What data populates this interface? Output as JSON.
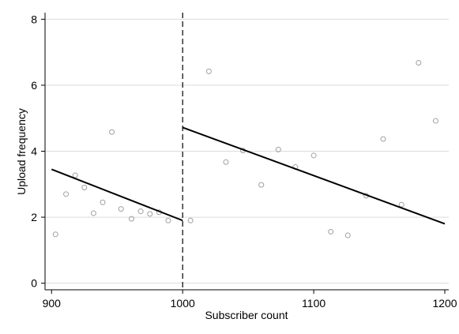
{
  "chart_data": {
    "type": "scatter",
    "xlabel": "Subscriber count",
    "ylabel": "Upload frequency",
    "xlim": [
      895,
      1203
    ],
    "ylim": [
      -0.2,
      8.2
    ],
    "xticks": [
      900,
      1000,
      1100,
      1200
    ],
    "yticks": [
      0,
      2,
      4,
      6,
      8
    ],
    "grid": "horizontal",
    "cutoff": 1000,
    "points": [
      {
        "x": 903,
        "y": 1.48
      },
      {
        "x": 911,
        "y": 2.7
      },
      {
        "x": 918,
        "y": 3.27
      },
      {
        "x": 925,
        "y": 2.9
      },
      {
        "x": 932,
        "y": 2.12
      },
      {
        "x": 939,
        "y": 2.45
      },
      {
        "x": 946,
        "y": 4.58
      },
      {
        "x": 953,
        "y": 2.25
      },
      {
        "x": 961,
        "y": 1.95
      },
      {
        "x": 968,
        "y": 2.18
      },
      {
        "x": 975,
        "y": 2.1
      },
      {
        "x": 982,
        "y": 2.15
      },
      {
        "x": 989,
        "y": 1.9
      },
      {
        "x": 1006,
        "y": 1.9
      },
      {
        "x": 1020,
        "y": 6.42
      },
      {
        "x": 1033,
        "y": 3.67
      },
      {
        "x": 1046,
        "y": 4.02
      },
      {
        "x": 1060,
        "y": 2.98
      },
      {
        "x": 1073,
        "y": 4.05
      },
      {
        "x": 1086,
        "y": 3.52
      },
      {
        "x": 1100,
        "y": 3.87
      },
      {
        "x": 1113,
        "y": 1.56
      },
      {
        "x": 1126,
        "y": 1.45
      },
      {
        "x": 1140,
        "y": 2.65
      },
      {
        "x": 1153,
        "y": 4.37
      },
      {
        "x": 1167,
        "y": 2.38
      },
      {
        "x": 1180,
        "y": 6.68
      },
      {
        "x": 1193,
        "y": 4.92
      }
    ],
    "fit_lines": [
      {
        "x": [
          900,
          1000
        ],
        "y": [
          3.45,
          1.9
        ]
      },
      {
        "x": [
          1000,
          1200
        ],
        "y": [
          4.72,
          1.8
        ]
      }
    ],
    "colors": {
      "points": "#a0a0a0",
      "fit_line": "#000000",
      "grid": "#dcdcdc",
      "cutoff_line": "#000000"
    }
  }
}
